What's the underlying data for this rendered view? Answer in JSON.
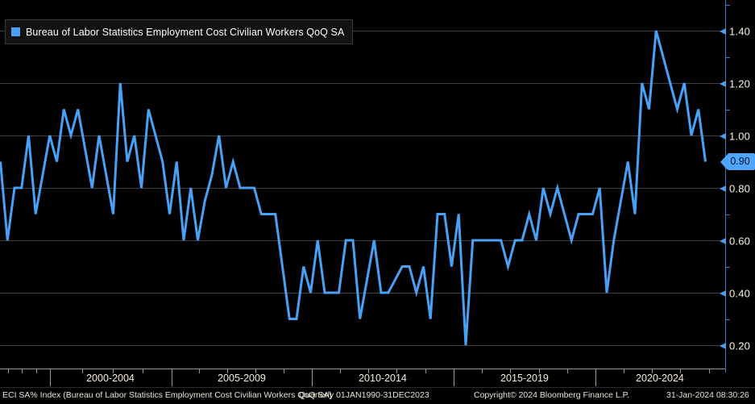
{
  "legend": {
    "label": "Bureau of Labor Statistics Employment Cost Civilian Workers QoQ SA"
  },
  "colors": {
    "background": "#000000",
    "line": "#47A1F7",
    "axis_blue": "#3A78C2",
    "badge_bg": "#4EA6FF",
    "gridline": "#404040",
    "tick_label": "#F8F4E4",
    "x_axis_gray": "#9a9a9a"
  },
  "status_bar": {
    "description": "ECI SA% Index (Bureau of Labor Statistics Employment Cost Civilian Workers QoQ SA)",
    "frequency_range": "Quarterly 01JAN1990-31DEC2023",
    "copyright": "Copyright© 2024 Bloomberg Finance L.P.",
    "timestamp": "31-Jan-2024 08:30:26"
  },
  "chart_data": {
    "type": "line",
    "title": "Bureau of Labor Statistics Employment Cost Civilian Workers QoQ SA",
    "grid": true,
    "legend_position": "top-left",
    "y_axis": {
      "side": "right",
      "ticks": [
        {
          "value": 1.4,
          "label": "1.40"
        },
        {
          "value": 1.2,
          "label": "1.20"
        },
        {
          "value": 1.0,
          "label": "1.00"
        },
        {
          "value": 0.8,
          "label": "0.80"
        },
        {
          "value": 0.6,
          "label": "0.60"
        },
        {
          "value": 0.4,
          "label": "0.40"
        },
        {
          "value": 0.2,
          "label": "0.20"
        }
      ],
      "minor_ticks": [
        1.5,
        1.3,
        1.1,
        0.7,
        0.5,
        0.3
      ],
      "visible_range": [
        0.11,
        1.51
      ]
    },
    "x_axis": {
      "sections": [
        "2000-2004",
        "2005-2009",
        "2010-2014",
        "2015-2019",
        "2020-2024"
      ]
    },
    "last_point": {
      "label": "0.90",
      "value": 0.9
    },
    "series": [
      {
        "name": "Bureau of Labor Statistics Employment Cost Civilian Workers QoQ SA",
        "frequency": "quarterly",
        "start": "1998Q4",
        "end": "2023Q4",
        "values": [
          0.9,
          0.6,
          0.8,
          0.8,
          1.0,
          0.7,
          0.85,
          1.0,
          0.9,
          1.1,
          1.0,
          1.1,
          0.95,
          0.8,
          1.0,
          0.85,
          0.7,
          1.2,
          0.9,
          1.0,
          0.8,
          1.1,
          1.0,
          0.9,
          0.7,
          0.9,
          0.6,
          0.8,
          0.6,
          0.75,
          0.85,
          1.0,
          0.8,
          0.9,
          0.8,
          0.8,
          0.8,
          0.7,
          0.7,
          0.7,
          0.5,
          0.3,
          0.3,
          0.5,
          0.4,
          0.6,
          0.4,
          0.4,
          0.4,
          0.6,
          0.6,
          0.3,
          0.45,
          0.6,
          0.4,
          0.4,
          0.45,
          0.5,
          0.5,
          0.4,
          0.5,
          0.3,
          0.7,
          0.7,
          0.5,
          0.7,
          0.2,
          0.6,
          0.6,
          0.6,
          0.6,
          0.6,
          0.5,
          0.6,
          0.6,
          0.7,
          0.6,
          0.8,
          0.7,
          0.8,
          0.7,
          0.6,
          0.7,
          0.7,
          0.7,
          0.8,
          0.4,
          0.6,
          0.75,
          0.9,
          0.7,
          1.2,
          1.1,
          1.4,
          1.3,
          1.2,
          1.1,
          1.2,
          1.0,
          1.1,
          0.9
        ]
      }
    ]
  }
}
